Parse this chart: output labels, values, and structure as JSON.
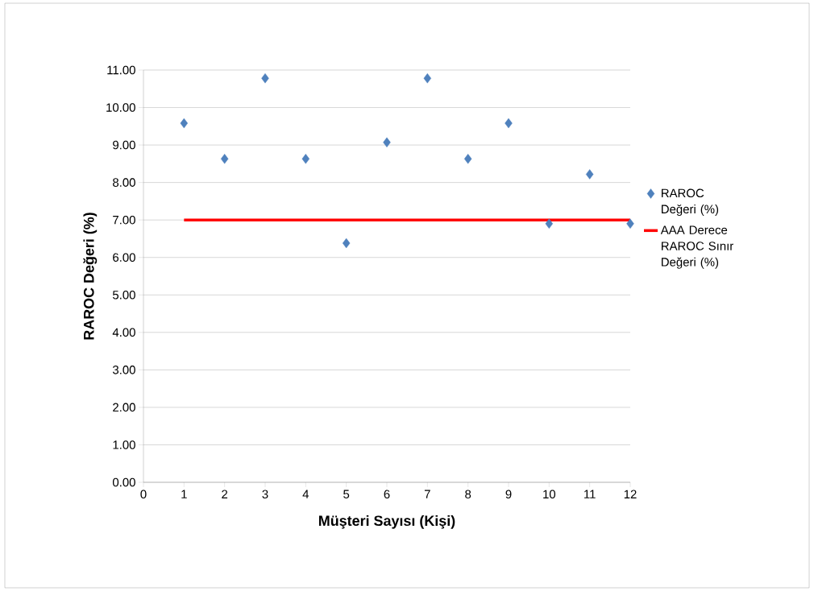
{
  "chart_data": {
    "type": "scatter",
    "xlabel": "Müşteri Sayısı (Kişi)",
    "ylabel": "RAROC Değeri (%)",
    "x": [
      1,
      2,
      3,
      4,
      5,
      6,
      7,
      8,
      9,
      10,
      11,
      12
    ],
    "series": [
      {
        "name": "RAROC Değeri (%)",
        "marker": "diamond",
        "color": "#4f81bd",
        "values": [
          9.58,
          8.63,
          10.78,
          8.63,
          6.38,
          9.07,
          10.78,
          8.63,
          9.58,
          6.9,
          8.22,
          6.9
        ]
      },
      {
        "name": "AAA Derece RAROC Sınır Değeri (%)",
        "type": "line",
        "marker": "none",
        "line_style": "solid",
        "color": "#ff0000",
        "values": [
          7,
          7,
          7,
          7,
          7,
          7,
          7,
          7,
          7,
          7,
          7,
          7
        ]
      }
    ],
    "xlim": [
      0,
      12
    ],
    "xticks": [
      0,
      1,
      2,
      3,
      4,
      5,
      6,
      7,
      8,
      9,
      10,
      11,
      12
    ],
    "ylim": [
      0,
      11
    ],
    "yticks": [
      {
        "value": 0,
        "label": "0.00"
      },
      {
        "value": 1,
        "label": "1.00"
      },
      {
        "value": 2,
        "label": "2.00"
      },
      {
        "value": 3,
        "label": "3.00"
      },
      {
        "value": 4,
        "label": "4.00"
      },
      {
        "value": 5,
        "label": "5.00"
      },
      {
        "value": 6,
        "label": "6.00"
      },
      {
        "value": 7,
        "label": "7.00"
      },
      {
        "value": 8,
        "label": "8.00"
      },
      {
        "value": 9,
        "label": "9.00"
      },
      {
        "value": 10,
        "label": "10.00"
      },
      {
        "value": 11,
        "label": "11.00"
      }
    ],
    "grid": "y",
    "legend": "right"
  }
}
